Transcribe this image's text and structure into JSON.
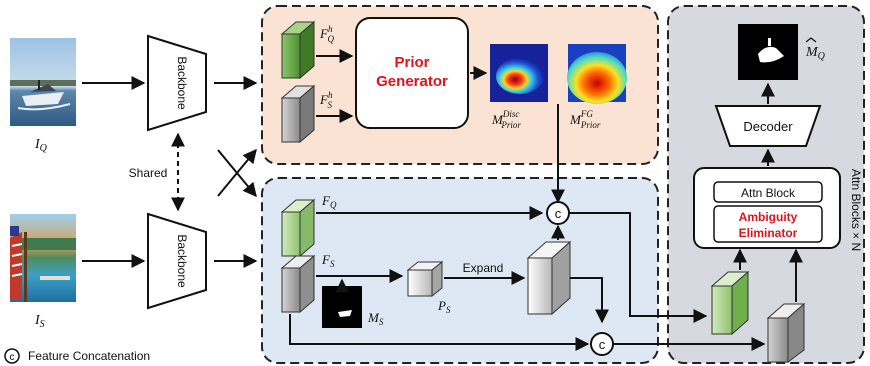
{
  "inputs": {
    "query_label": "I",
    "query_sub": "Q",
    "support_label": "I",
    "support_sub": "S"
  },
  "backbone": {
    "label": "Backbone",
    "shared_label": "Shared"
  },
  "prior_module": {
    "generator_line1": "Prior",
    "generator_line2": "Generator",
    "fq_h_main": "F",
    "fq_h_sup": "h",
    "fq_h_sub": "Q",
    "fs_h_main": "F",
    "fs_h_sup": "h",
    "fs_h_sub": "S",
    "disc_main": "M",
    "disc_sup": "Disc",
    "disc_sub": "Prior",
    "fg_main": "M",
    "fg_sup": "FG",
    "fg_sub": "Prior"
  },
  "feature_module": {
    "fq_main": "F",
    "fq_sub": "Q",
    "fs_main": "F",
    "fs_sub": "S",
    "ms_main": "M",
    "ms_sub": "S",
    "ps_main": "P",
    "ps_sub": "S",
    "expand_label": "Expand",
    "concat_symbol": "c"
  },
  "attention": {
    "attn_block_label": "Attn Block",
    "eliminator_line1": "Ambiguity",
    "eliminator_line2": "Eliminator",
    "decoder_label": "Decoder",
    "repeat_label": "Attn Blocks × N",
    "output_main": "M",
    "output_sub": "Q"
  },
  "legend": {
    "symbol": "c",
    "text": "Feature Concatenation"
  },
  "colors": {
    "prior_panel": "#fbe3d3",
    "feature_panel": "#dde8f4",
    "attn_panel": "#d7d9e0",
    "green_cube": "#7bb45a",
    "light_green_cube": "#b9dca0",
    "gray_cube": "#a9a9a9",
    "accent_red": "#e0121b"
  }
}
